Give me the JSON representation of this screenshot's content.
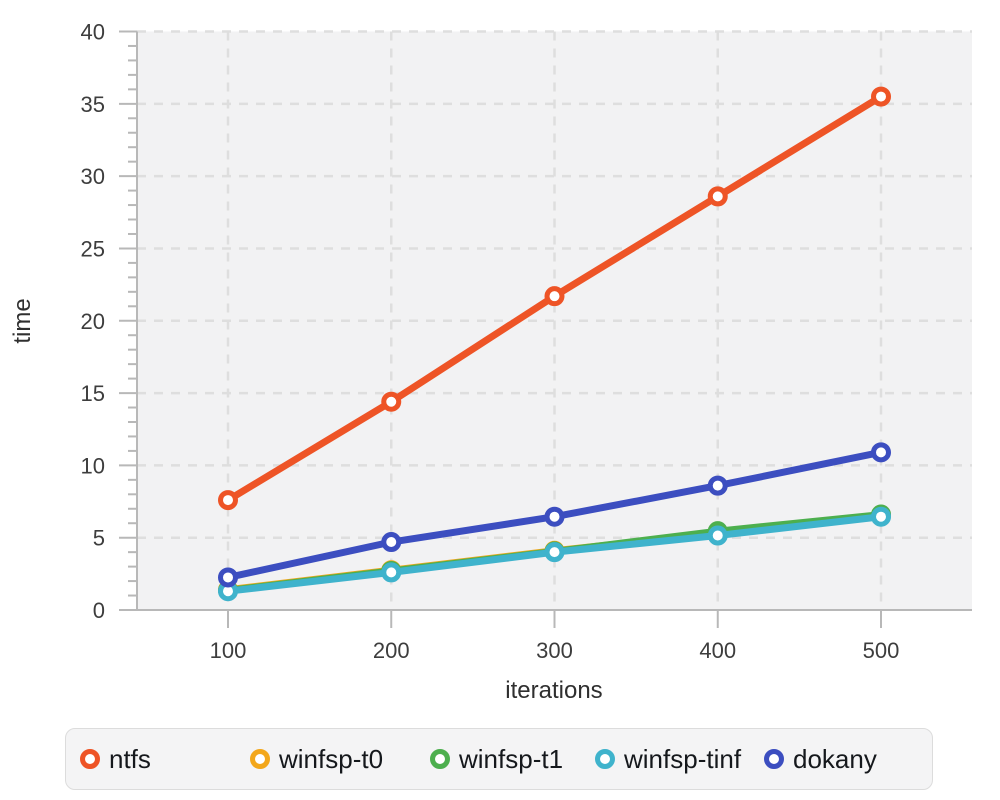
{
  "chart_data": {
    "type": "line",
    "title": "",
    "xlabel": "iterations",
    "ylabel": "time",
    "x": [
      100,
      200,
      300,
      400,
      500
    ],
    "xtick_labels": [
      "100",
      "200",
      "300",
      "400",
      "500"
    ],
    "ytick_labels": [
      "0",
      "5",
      "10",
      "15",
      "20",
      "25",
      "30",
      "35",
      "40"
    ],
    "yticks": [
      0,
      5,
      10,
      15,
      20,
      25,
      30,
      35,
      40
    ],
    "y_minor_step": 1,
    "xlim": [
      100,
      500
    ],
    "ylim": [
      0,
      40
    ],
    "grid": "dashed-major",
    "legend_position": "bottom",
    "series": [
      {
        "name": "ntfs",
        "color": "#ee5426",
        "values": [
          7.6,
          14.4,
          21.7,
          28.6,
          35.5
        ]
      },
      {
        "name": "winfsp-t0",
        "color": "#f3a71b",
        "values": [
          1.4,
          2.75,
          4.1,
          5.3,
          6.55
        ]
      },
      {
        "name": "winfsp-t1",
        "color": "#4daf4e",
        "values": [
          1.35,
          2.7,
          4.05,
          5.45,
          6.6
        ]
      },
      {
        "name": "winfsp-tinf",
        "color": "#3fb3cc",
        "values": [
          1.3,
          2.6,
          4.0,
          5.15,
          6.45
        ]
      },
      {
        "name": "dokany",
        "color": "#3c4ec0",
        "values": [
          2.25,
          4.7,
          6.45,
          8.6,
          10.9
        ]
      }
    ]
  },
  "style_colors": {
    "panel_bg": "#f2f2f3",
    "gridline": "#dedede",
    "axis_line": "#b8b8b8",
    "tick_label": "#3d3d3d",
    "axis_label": "#2f2f2f",
    "marker_fill": "#ffffff",
    "legend_bg": "#f4f4f5",
    "legend_border": "#dcdcdc",
    "legend_text": "#15181c"
  }
}
